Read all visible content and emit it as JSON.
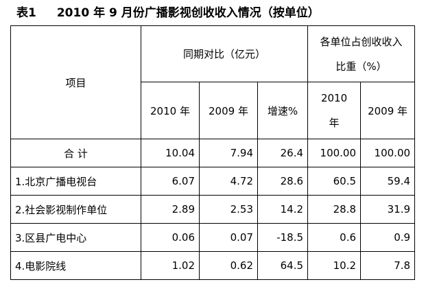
{
  "title": {
    "label": "表1",
    "text": "2010 年 9 月份广播影视创收收入情况（按单位）"
  },
  "table": {
    "header": {
      "item": "项目",
      "group1": "同期对比（亿元）",
      "group2": "各单位占创收收入比重（%）",
      "columns": [
        "2010 年",
        "2009 年",
        "增速%",
        "2010 年",
        "2009 年"
      ]
    },
    "rows": [
      [
        "合 计",
        "10.04",
        "7.94",
        "26.4",
        "100.00",
        "100.00"
      ],
      [
        "1.北京广播电视台",
        "6.07",
        "4.72",
        "28.6",
        "60.5",
        "59.4"
      ],
      [
        "2.社会影视制作单位",
        "2.89",
        "2.53",
        "14.2",
        "28.8",
        "31.9"
      ],
      [
        "3.区县广电中心",
        "0.06",
        "0.07",
        "-18.5",
        "0.6",
        "0.9"
      ],
      [
        "4.电影院线",
        "1.02",
        "0.62",
        "64.5",
        "10.2",
        "7.8"
      ]
    ]
  }
}
